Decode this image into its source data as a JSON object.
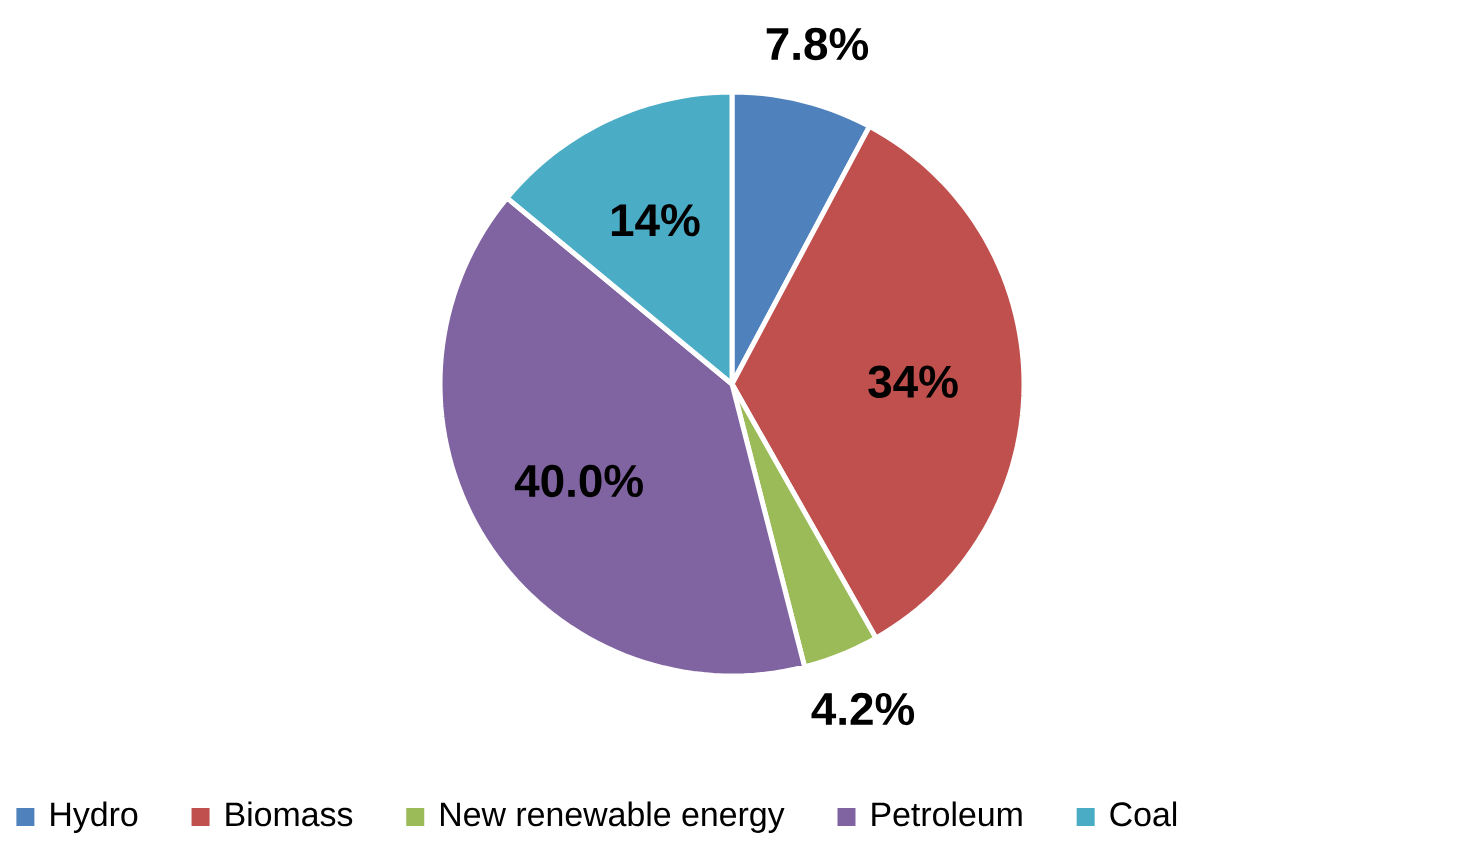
{
  "chart_data": {
    "type": "pie",
    "categories": [
      "Hydro",
      "Biomass",
      "New renewable energy",
      "Petroleum",
      "Coal"
    ],
    "values": [
      7.8,
      34,
      4.2,
      40.0,
      14
    ],
    "colors": [
      "#4f81bd",
      "#c0504d",
      "#9bbb59",
      "#8064a2",
      "#4bacc6"
    ],
    "value_labels": [
      "7.8%",
      "34%",
      "4.2%",
      "40.0%",
      "14%"
    ],
    "legend": "bottom"
  }
}
